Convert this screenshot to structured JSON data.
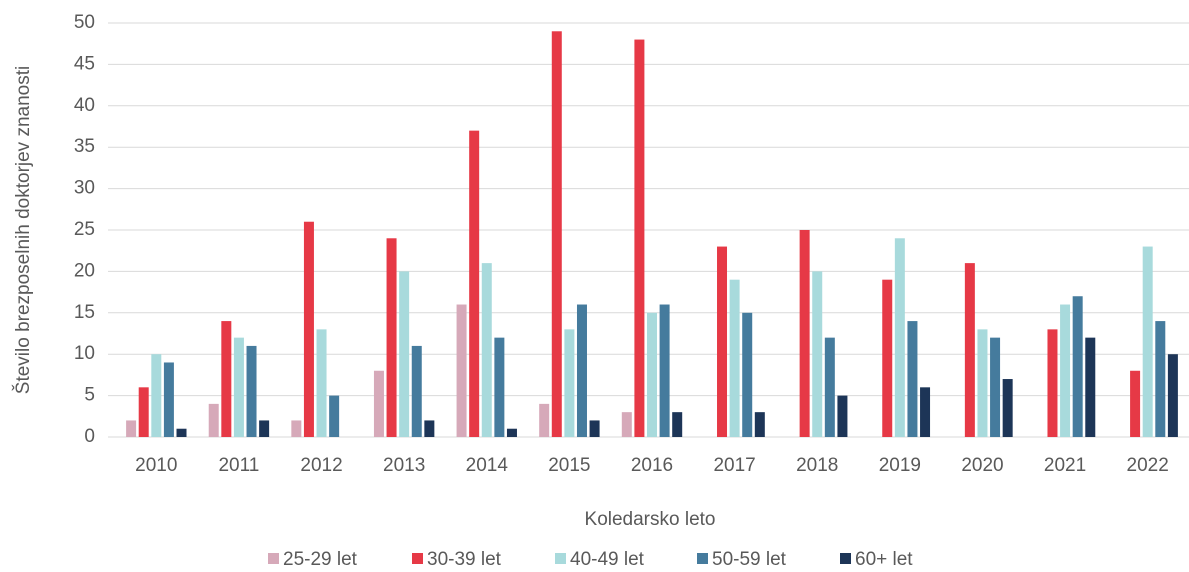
{
  "chart_data": {
    "type": "bar",
    "x_label": "Koledarsko leto",
    "y_label": "Število brezposelnih doktorjev znanosti",
    "categories": [
      "2010",
      "2011",
      "2012",
      "2013",
      "2014",
      "2015",
      "2016",
      "2017",
      "2018",
      "2019",
      "2020",
      "2021",
      "2022"
    ],
    "series": [
      {
        "name": "25-29 let",
        "color": "#d6a9b9",
        "values": [
          2,
          4,
          2,
          8,
          16,
          4,
          3,
          0,
          0,
          0,
          0,
          0,
          0
        ]
      },
      {
        "name": "30-39 let",
        "color": "#e63946",
        "values": [
          6,
          14,
          26,
          24,
          37,
          49,
          48,
          23,
          25,
          19,
          21,
          13,
          8
        ]
      },
      {
        "name": "40-49 let",
        "color": "#a8dadc",
        "values": [
          10,
          12,
          13,
          20,
          21,
          13,
          15,
          19,
          20,
          24,
          13,
          16,
          23
        ]
      },
      {
        "name": "50-59 let",
        "color": "#457b9d",
        "values": [
          9,
          11,
          5,
          11,
          12,
          16,
          16,
          15,
          12,
          14,
          12,
          17,
          14
        ]
      },
      {
        "name": "60+ let",
        "color": "#1d3557",
        "values": [
          1,
          2,
          0,
          2,
          1,
          2,
          3,
          3,
          5,
          6,
          7,
          12,
          10
        ]
      }
    ],
    "ylim": [
      0,
      50
    ],
    "yticks": [
      0,
      5,
      10,
      15,
      20,
      25,
      30,
      35,
      40,
      45,
      50
    ],
    "grid": true,
    "legend": "bottom"
  }
}
